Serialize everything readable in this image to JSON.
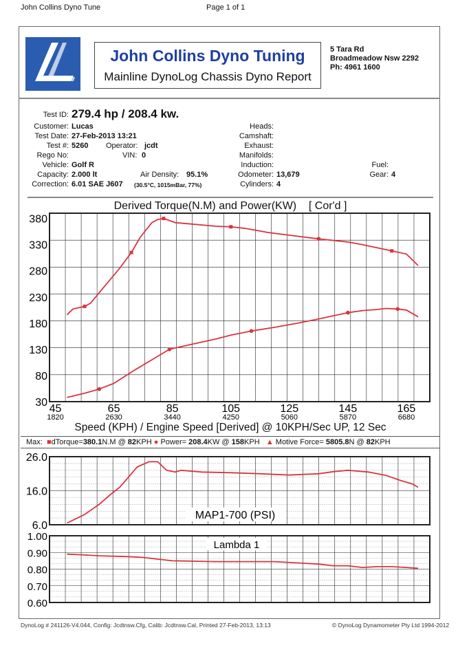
{
  "page": {
    "title": "John Collins Dyno Tune",
    "page_num": "Page 1 of 1"
  },
  "header": {
    "logo_text": "JCDT",
    "company": "John Collins Dyno Tuning",
    "subtitle": "Mainline DynoLog Chassis Dyno Report",
    "address1": "5 Tara Rd",
    "address2": "Broadmeadow Nsw 2292",
    "phone": "Ph: 4961 1600"
  },
  "info": {
    "test_id_label": "Test ID:",
    "test_id": "279.4 hp / 208.4 kw.",
    "customer_label": "Customer:",
    "customer": "Lucas",
    "date_label": "Test Date:",
    "date": "27-Feb-2013 13:21",
    "testno_label": "Test #:",
    "testno": "5260",
    "operator_label": "Operator:",
    "operator": "jcdt",
    "rego_label": "Rego No:",
    "vin_label": "VIN:",
    "vin": "0",
    "vehicle_label": "Vehicle:",
    "vehicle": "Golf R",
    "capacity_label": "Capacity:",
    "capacity": "2.000 lt",
    "airdens_label": "Air Density:",
    "airdens": "95.1%",
    "correction_label": "Correction:",
    "correction": "6.01 SAE J607",
    "conditions": "(30.5°C, 1015mBar, 77%)",
    "heads_label": "Heads:",
    "camshaft_label": "Camshaft:",
    "exhaust_label": "Exhaust:",
    "manifolds_label": "Manifolds:",
    "induction_label": "Induction:",
    "odometer_label": "Odometer:",
    "odometer": "13,679",
    "cylinders_label": "Cylinders:",
    "cylinders": "4",
    "fuel_label": "Fuel:",
    "gear_label": "Gear:",
    "gear": "4"
  },
  "max": {
    "label": "Max:",
    "torque_label": "dTorque=",
    "torque": "380.1",
    "torque_unit": "N.M @",
    "torque_at": "82",
    "power_label": "Power=",
    "power": "208.4",
    "power_unit": "KW @",
    "power_at": "158",
    "force_label": "Motive Force=",
    "force": "5805.8",
    "force_unit": "N @",
    "force_at": "82",
    "kph": "KPH"
  },
  "footer": {
    "left": "DynoLog # 241126-V4.044, Config: Jcdtnsw.Cfg, Calib: Jcdtnsw.Cal, Printed 27-Feb-2013, 13:13",
    "right": "© DynoLog Dynamometer Pty Ltd 1994-2012"
  },
  "colors": {
    "curve": "#d9343f",
    "grid": "#222"
  },
  "chart_data": [
    {
      "type": "line",
      "title": "Derived Torque(N.M) and Power(KW)",
      "title_suffix": "[ Cor'd ]",
      "xlabel": "Speed (KPH) / Engine Speed [Derived] @ 10KPH/Sec UP, 12 Sec",
      "xlim": [
        43,
        173
      ],
      "ylim": [
        30,
        390
      ],
      "xticks": [
        45,
        65,
        85,
        105,
        125,
        145,
        165
      ],
      "xticks2": [
        "1820",
        "2630",
        "3440",
        "4250",
        "5060",
        "5870",
        "6680"
      ],
      "yticks": [
        30,
        80,
        130,
        180,
        230,
        280,
        330,
        380
      ],
      "series": [
        {
          "name": "dTorque",
          "marker": "square",
          "x": [
            49,
            51,
            55,
            57,
            61,
            67,
            71,
            74,
            78,
            80,
            82,
            86,
            90,
            100,
            105,
            110,
            118,
            125,
            135,
            145,
            150,
            155,
            160,
            165,
            169
          ],
          "y": [
            196,
            207,
            212,
            218,
            245,
            285,
            315,
            344,
            372,
            378,
            380,
            372,
            370,
            365,
            364,
            361,
            353,
            348,
            341,
            335,
            330,
            324,
            318,
            312,
            290
          ]
        },
        {
          "name": "Power",
          "marker": "circle",
          "x": [
            49,
            55,
            60,
            65,
            72,
            78,
            84,
            92,
            100,
            105,
            112,
            120,
            128,
            135,
            145,
            150,
            155,
            158,
            162,
            165,
            169
          ],
          "y": [
            38,
            46,
            54,
            65,
            90,
            110,
            130,
            140,
            150,
            157,
            165,
            172,
            180,
            188,
            200,
            204,
            206,
            208,
            207,
            205,
            192
          ]
        }
      ]
    },
    {
      "type": "line",
      "title": "MAP1-700 (PSI)",
      "xlim": [
        43,
        173
      ],
      "ylim": [
        6,
        26
      ],
      "yticks": [
        "6.0",
        "16.0",
        "26.0"
      ],
      "series": [
        {
          "name": "MAP1-700",
          "x": [
            49,
            55,
            60,
            64,
            67,
            70,
            73,
            77,
            80,
            83,
            86,
            88,
            95,
            105,
            115,
            125,
            135,
            140,
            145,
            152,
            158,
            163,
            167,
            169
          ],
          "y": [
            6.5,
            9,
            12,
            15,
            17,
            20,
            23,
            24.5,
            24.5,
            22,
            21.5,
            22,
            21.5,
            21.3,
            21,
            20.6,
            21,
            21.6,
            22,
            21.5,
            20.5,
            19,
            18,
            17
          ]
        }
      ]
    },
    {
      "type": "line",
      "title": "Lambda 1",
      "xlim": [
        43,
        173
      ],
      "ylim": [
        0.6,
        1.0
      ],
      "yticks": [
        "0.60",
        "0.70",
        "0.80",
        "0.90",
        "1.00"
      ],
      "series": [
        {
          "name": "Lambda 1",
          "x": [
            49,
            55,
            60,
            70,
            75,
            80,
            85,
            100,
            110,
            120,
            130,
            135,
            140,
            145,
            150,
            155,
            160,
            165,
            169
          ],
          "y": [
            0.89,
            0.885,
            0.88,
            0.875,
            0.87,
            0.86,
            0.85,
            0.845,
            0.845,
            0.845,
            0.835,
            0.83,
            0.82,
            0.82,
            0.81,
            0.815,
            0.815,
            0.81,
            0.805
          ]
        }
      ]
    }
  ]
}
